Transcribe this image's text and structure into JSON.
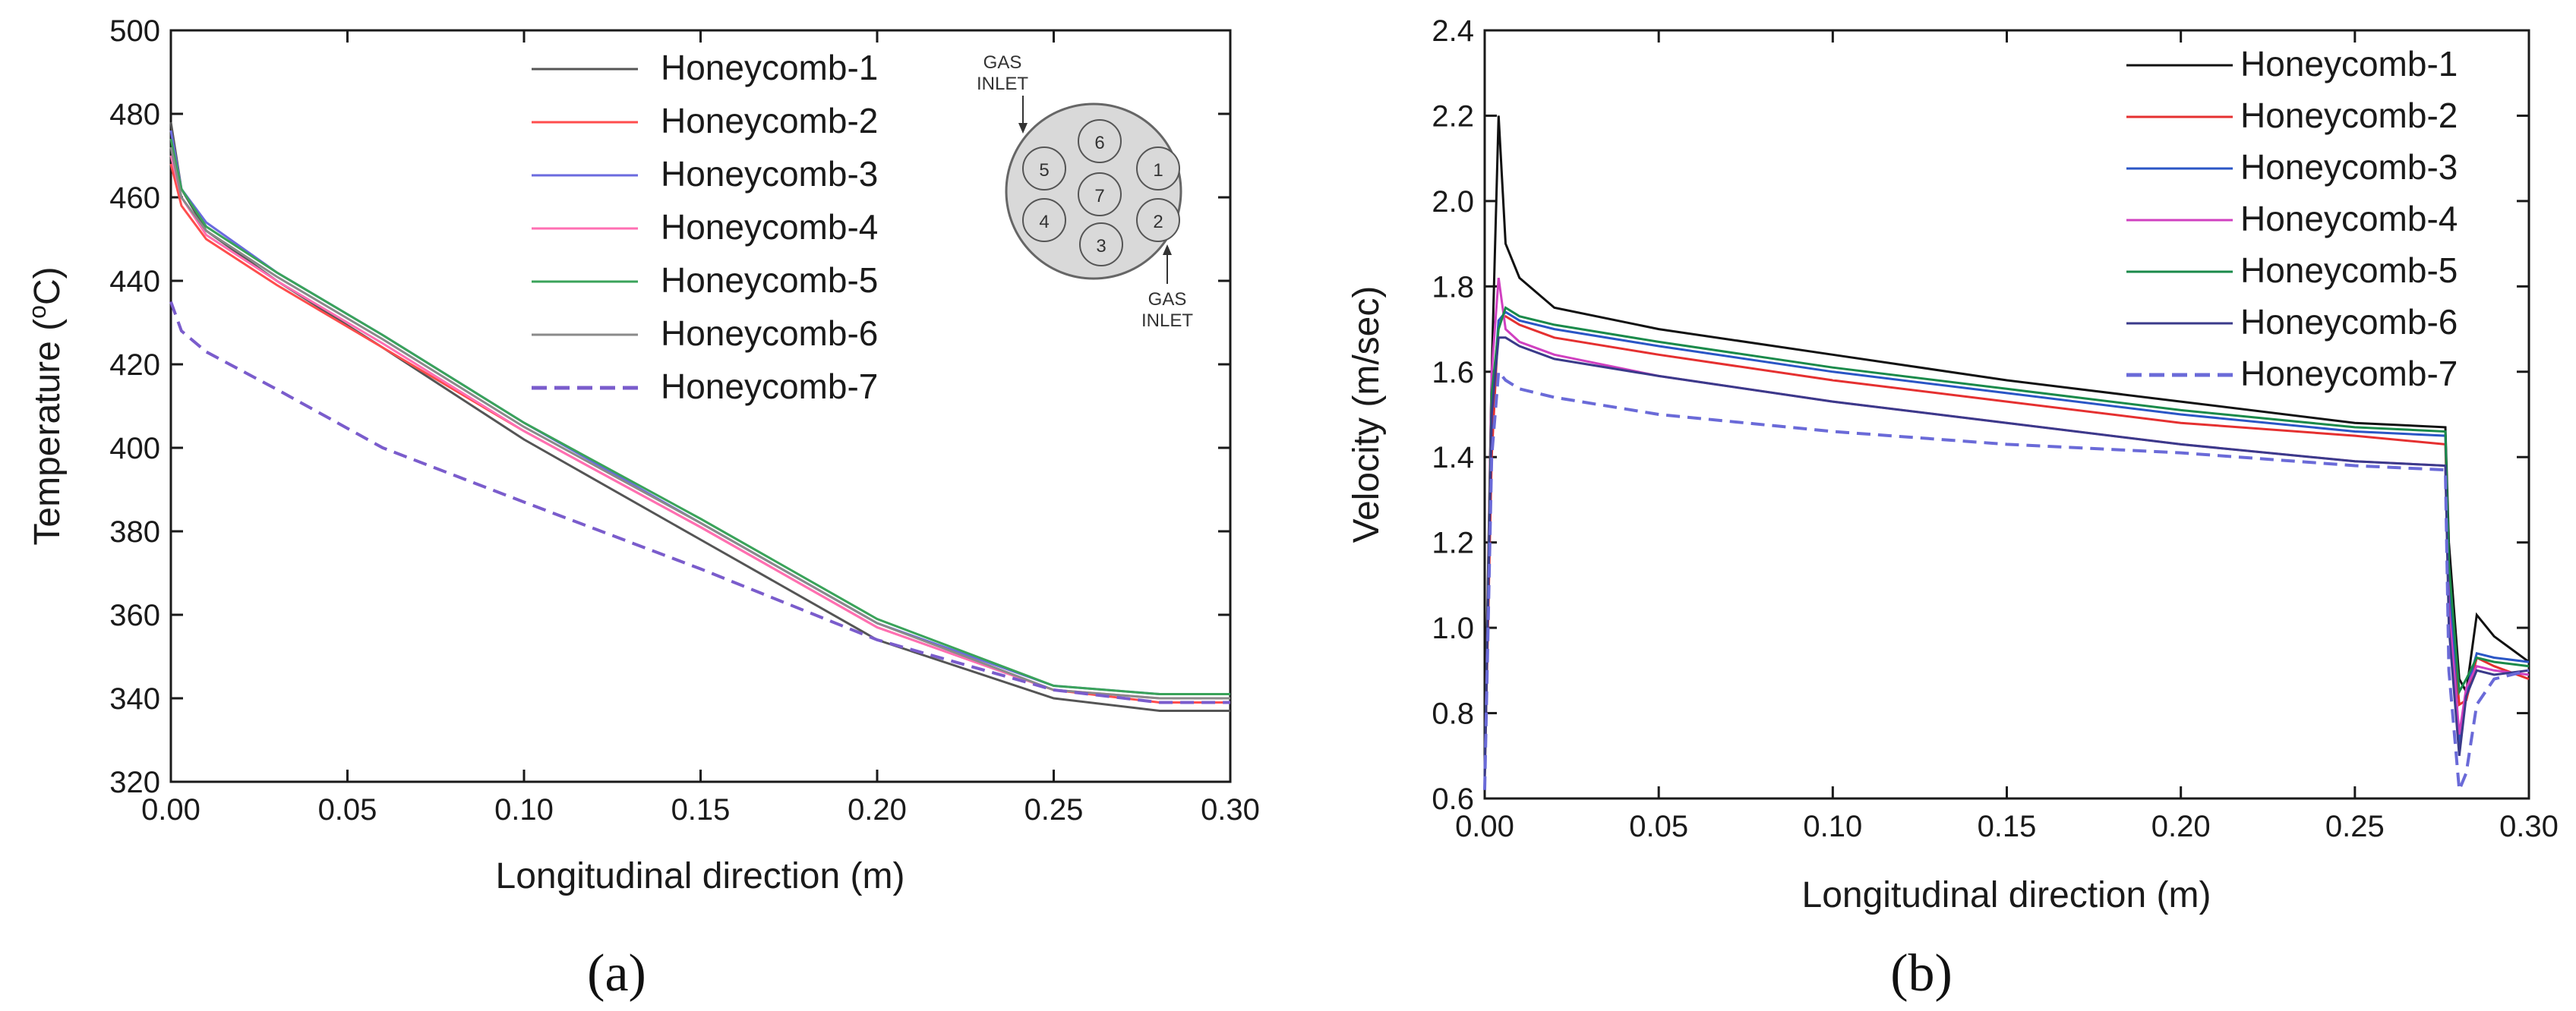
{
  "charts": [
    {
      "id": "a",
      "type": "line",
      "panel_label": "(a)",
      "xlabel": "Longitudinal direction (m)",
      "ylabel_main": "Temperature (",
      "ylabel_sup": "o",
      "ylabel_unit": "C)",
      "xlim": [
        0.0,
        0.3
      ],
      "ylim": [
        320,
        500
      ],
      "xticks": [
        "0.00",
        "0.05",
        "0.10",
        "0.15",
        "0.20",
        "0.25",
        "0.30"
      ],
      "yticks": [
        "320",
        "340",
        "360",
        "380",
        "400",
        "420",
        "440",
        "460",
        "480",
        "500"
      ],
      "series": [
        {
          "name": "Honeycomb-1",
          "color": "#555555",
          "dash": false,
          "x": [
            0,
            0.003,
            0.01,
            0.03,
            0.06,
            0.1,
            0.15,
            0.2,
            0.25,
            0.28,
            0.3
          ],
          "y": [
            478,
            462,
            452,
            440,
            424,
            402,
            378,
            354,
            340,
            337,
            337
          ]
        },
        {
          "name": "Honeycomb-2",
          "color": "#ff4d4d",
          "dash": false,
          "x": [
            0,
            0.003,
            0.01,
            0.03,
            0.06,
            0.1,
            0.15,
            0.2,
            0.25,
            0.28,
            0.3
          ],
          "y": [
            468,
            458,
            450,
            439,
            424,
            404,
            381,
            357,
            342,
            339,
            339
          ]
        },
        {
          "name": "Honeycomb-3",
          "color": "#6a6adf",
          "dash": false,
          "x": [
            0,
            0.003,
            0.01,
            0.03,
            0.06,
            0.1,
            0.15,
            0.2,
            0.25,
            0.28,
            0.3
          ],
          "y": [
            476,
            462,
            454,
            442,
            427,
            406,
            382,
            358,
            343,
            341,
            341
          ]
        },
        {
          "name": "Honeycomb-4",
          "color": "#ff6fb3",
          "dash": false,
          "x": [
            0,
            0.003,
            0.01,
            0.03,
            0.06,
            0.1,
            0.15,
            0.2,
            0.25,
            0.28,
            0.3
          ],
          "y": [
            470,
            460,
            451,
            440,
            425,
            404,
            381,
            357,
            342,
            340,
            340
          ]
        },
        {
          "name": "Honeycomb-5",
          "color": "#3aa35a",
          "dash": false,
          "x": [
            0,
            0.003,
            0.01,
            0.03,
            0.06,
            0.1,
            0.15,
            0.2,
            0.25,
            0.28,
            0.3
          ],
          "y": [
            474,
            462,
            453,
            442,
            427,
            406,
            383,
            359,
            343,
            341,
            341
          ]
        },
        {
          "name": "Honeycomb-6",
          "color": "#8a8a8a",
          "dash": false,
          "x": [
            0,
            0.003,
            0.01,
            0.03,
            0.06,
            0.1,
            0.15,
            0.2,
            0.25,
            0.28,
            0.3
          ],
          "y": [
            472,
            460,
            452,
            441,
            426,
            405,
            382,
            358,
            342,
            340,
            340
          ]
        },
        {
          "name": "Honeycomb-7",
          "color": "#7a5ccc",
          "dash": true,
          "x": [
            0,
            0.003,
            0.01,
            0.03,
            0.06,
            0.1,
            0.15,
            0.2,
            0.25,
            0.28,
            0.3
          ],
          "y": [
            435,
            428,
            423,
            414,
            400,
            387,
            371,
            354,
            342,
            339,
            339
          ]
        }
      ],
      "inset": {
        "circles": [
          "1",
          "2",
          "3",
          "4",
          "5",
          "6",
          "7"
        ],
        "gas_inlet_top_line1": "GAS",
        "gas_inlet_top_line2": "INLET",
        "gas_inlet_bottom_line1": "GAS",
        "gas_inlet_bottom_line2": "INLET"
      }
    },
    {
      "id": "b",
      "type": "line",
      "panel_label": "(b)",
      "xlabel": "Longitudinal direction (m)",
      "ylabel": "Velocity (m/sec)",
      "xlim": [
        0.0,
        0.3
      ],
      "ylim": [
        0.6,
        2.4
      ],
      "xticks": [
        "0.00",
        "0.05",
        "0.10",
        "0.15",
        "0.20",
        "0.25",
        "0.30"
      ],
      "yticks": [
        "0.6",
        "0.8",
        "1.0",
        "1.2",
        "1.4",
        "1.6",
        "1.8",
        "2.0",
        "2.2",
        "2.4"
      ],
      "series": [
        {
          "name": "Honeycomb-1",
          "color": "#111111",
          "dash": false,
          "x": [
            0,
            0.002,
            0.004,
            0.006,
            0.01,
            0.02,
            0.05,
            0.1,
            0.15,
            0.2,
            0.25,
            0.276,
            0.277,
            0.28,
            0.282,
            0.285,
            0.29,
            0.3
          ],
          "y": [
            0.7,
            1.6,
            2.2,
            1.9,
            1.82,
            1.75,
            1.7,
            1.64,
            1.58,
            1.53,
            1.48,
            1.47,
            1.2,
            0.88,
            0.85,
            1.03,
            0.98,
            0.92
          ]
        },
        {
          "name": "Honeycomb-2",
          "color": "#e53030",
          "dash": false,
          "x": [
            0,
            0.002,
            0.004,
            0.006,
            0.01,
            0.02,
            0.05,
            0.1,
            0.15,
            0.2,
            0.25,
            0.276,
            0.277,
            0.28,
            0.282,
            0.285,
            0.29,
            0.3
          ],
          "y": [
            0.65,
            1.4,
            1.72,
            1.73,
            1.71,
            1.68,
            1.64,
            1.58,
            1.53,
            1.48,
            1.45,
            1.43,
            1.1,
            0.82,
            0.83,
            0.93,
            0.91,
            0.88
          ]
        },
        {
          "name": "Honeycomb-3",
          "color": "#2a56c6",
          "dash": false,
          "x": [
            0,
            0.002,
            0.004,
            0.006,
            0.01,
            0.02,
            0.05,
            0.1,
            0.15,
            0.2,
            0.25,
            0.276,
            0.277,
            0.28,
            0.282,
            0.285,
            0.29,
            0.3
          ],
          "y": [
            0.65,
            1.5,
            1.72,
            1.74,
            1.72,
            1.7,
            1.66,
            1.6,
            1.55,
            1.5,
            1.46,
            1.45,
            1.15,
            0.72,
            0.85,
            0.94,
            0.93,
            0.92
          ]
        },
        {
          "name": "Honeycomb-4",
          "color": "#d040c0",
          "dash": false,
          "x": [
            0,
            0.002,
            0.004,
            0.006,
            0.01,
            0.02,
            0.05,
            0.1,
            0.15,
            0.2,
            0.25,
            0.276,
            0.277,
            0.28,
            0.282,
            0.285,
            0.29,
            0.3
          ],
          "y": [
            0.65,
            1.6,
            1.82,
            1.7,
            1.67,
            1.64,
            1.59,
            1.53,
            1.48,
            1.43,
            1.39,
            1.38,
            1.05,
            0.75,
            0.86,
            0.91,
            0.9,
            0.89
          ]
        },
        {
          "name": "Honeycomb-5",
          "color": "#1a8a4a",
          "dash": false,
          "x": [
            0,
            0.002,
            0.004,
            0.006,
            0.01,
            0.02,
            0.05,
            0.1,
            0.15,
            0.2,
            0.25,
            0.276,
            0.277,
            0.28,
            0.282,
            0.285,
            0.29,
            0.3
          ],
          "y": [
            0.65,
            1.55,
            1.7,
            1.75,
            1.73,
            1.71,
            1.67,
            1.61,
            1.56,
            1.51,
            1.47,
            1.46,
            1.15,
            0.85,
            0.88,
            0.93,
            0.92,
            0.91
          ]
        },
        {
          "name": "Honeycomb-6",
          "color": "#3a3a8a",
          "dash": false,
          "x": [
            0,
            0.002,
            0.004,
            0.006,
            0.01,
            0.02,
            0.05,
            0.1,
            0.15,
            0.2,
            0.25,
            0.276,
            0.277,
            0.28,
            0.282,
            0.285,
            0.29,
            0.3
          ],
          "y": [
            0.65,
            1.5,
            1.68,
            1.68,
            1.66,
            1.63,
            1.59,
            1.53,
            1.48,
            1.43,
            1.39,
            1.38,
            1.0,
            0.7,
            0.84,
            0.9,
            0.89,
            0.9
          ]
        },
        {
          "name": "Honeycomb-7",
          "color": "#6a6ad8",
          "dash": true,
          "x": [
            0,
            0.002,
            0.004,
            0.006,
            0.01,
            0.02,
            0.05,
            0.1,
            0.15,
            0.2,
            0.25,
            0.276,
            0.277,
            0.28,
            0.282,
            0.285,
            0.29,
            0.3
          ],
          "y": [
            0.62,
            1.4,
            1.6,
            1.58,
            1.56,
            1.54,
            1.5,
            1.46,
            1.43,
            1.41,
            1.38,
            1.37,
            0.9,
            0.62,
            0.66,
            0.82,
            0.88,
            0.9
          ]
        }
      ]
    }
  ]
}
